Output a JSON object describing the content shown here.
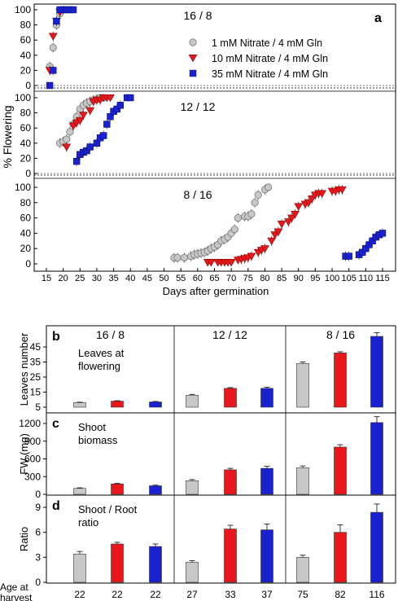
{
  "colors": {
    "gray": "#c8c8c8",
    "red": "#e8171b",
    "blue": "#1a21cf",
    "err": "#444444"
  },
  "top": {
    "panel_letter": "a",
    "ylabel": "% Flowering",
    "xlabel": "Days after germination",
    "legend": [
      {
        "label": "1 mM Nitrate / 4 mM Gln",
        "marker": "circle",
        "color": "#c8c8c8"
      },
      {
        "label": "10 mM Nitrate / 4 mM Gln",
        "marker": "triangle-down",
        "color": "#e8171b"
      },
      {
        "label": "35 mM Nitrate / 4 mM Gln",
        "marker": "square",
        "color": "#1a21cf"
      }
    ]
  },
  "bottom": {
    "age_label": "Age at\nharvest",
    "ages": [
      "22",
      "22",
      "22",
      "27",
      "33",
      "37",
      "75",
      "82",
      "116"
    ]
  },
  "chart_data": [
    {
      "type": "scatter",
      "panel": "a",
      "title": "16 / 8",
      "ylabel": "% Flowering",
      "xlim": [
        15,
        116
      ],
      "ylim": [
        0,
        105
      ],
      "yticks": [
        0,
        20,
        40,
        60,
        80,
        100
      ],
      "series": [
        {
          "name": "1 mM Nitrate / 4 mM Gln",
          "marker": "circle",
          "color": "#c8c8c8",
          "x": [
            16,
            17,
            18,
            19,
            20
          ],
          "y": [
            25,
            50,
            80,
            95,
            100
          ]
        },
        {
          "name": "10 mM Nitrate / 4 mM Gln",
          "marker": "triangle-down",
          "color": "#e8171b",
          "x": [
            16,
            17,
            18,
            19
          ],
          "y": [
            20,
            65,
            85,
            97
          ]
        },
        {
          "name": "35 mM Nitrate / 4 mM Gln",
          "marker": "square",
          "color": "#1a21cf",
          "x": [
            16,
            17,
            18,
            19,
            20,
            21,
            22,
            23
          ],
          "y": [
            0,
            20,
            85,
            100,
            100,
            100,
            100,
            100
          ]
        }
      ]
    },
    {
      "type": "scatter",
      "panel": "a",
      "title": "12 / 12",
      "ylabel": "% Flowering",
      "xlim": [
        15,
        116
      ],
      "ylim": [
        0,
        105
      ],
      "yticks": [
        0,
        20,
        40,
        60,
        80,
        100
      ],
      "series": [
        {
          "name": "1 mM Nitrate / 4 mM Gln",
          "marker": "circle",
          "color": "#c8c8c8",
          "x": [
            19,
            20,
            21,
            22,
            23,
            24,
            25,
            26,
            27,
            28,
            29,
            30,
            31,
            32
          ],
          "y": [
            40,
            42,
            45,
            55,
            65,
            75,
            85,
            90,
            93,
            95,
            97,
            98,
            100,
            100
          ]
        },
        {
          "name": "10 mM Nitrate / 4 mM Gln",
          "marker": "triangle-down",
          "color": "#e8171b",
          "x": [
            21,
            23,
            24,
            25,
            26,
            28,
            29,
            30,
            31,
            32,
            33,
            34
          ],
          "y": [
            35,
            63,
            67,
            70,
            77,
            83,
            95,
            97,
            97,
            100,
            100,
            100
          ]
        },
        {
          "name": "35 mM Nitrate / 4 mM Gln",
          "marker": "square",
          "color": "#1a21cf",
          "x": [
            24,
            25,
            26,
            27,
            28,
            30,
            31,
            32,
            33,
            34,
            35,
            36,
            37,
            39,
            40
          ],
          "y": [
            16,
            25,
            28,
            30,
            35,
            40,
            47,
            50,
            65,
            75,
            82,
            85,
            90,
            100,
            100
          ]
        }
      ]
    },
    {
      "type": "scatter",
      "panel": "a",
      "title": "8 / 16",
      "xlabel": "Days after germination",
      "ylabel": "% Flowering",
      "xlim": [
        15,
        116
      ],
      "ylim": [
        0,
        105
      ],
      "xticks": [
        15,
        20,
        25,
        30,
        35,
        40,
        45,
        50,
        55,
        60,
        65,
        70,
        75,
        80,
        85,
        90,
        95,
        100,
        105,
        110,
        115
      ],
      "yticks": [
        0,
        20,
        40,
        60,
        80,
        100
      ],
      "series": [
        {
          "name": "1 mM Nitrate / 4 mM Gln",
          "marker": "circle",
          "color": "#c8c8c8",
          "x": [
            53,
            54,
            56,
            58,
            59,
            60,
            61,
            62,
            63,
            64,
            65,
            66,
            67,
            68,
            69,
            70,
            71,
            72,
            74,
            75,
            76,
            77,
            78,
            80,
            81
          ],
          "y": [
            8,
            8,
            8,
            10,
            12,
            13,
            14,
            15,
            17,
            20,
            22,
            25,
            30,
            32,
            35,
            40,
            45,
            60,
            62,
            62,
            65,
            80,
            90,
            97,
            100
          ]
        },
        {
          "name": "10 mM Nitrate / 4 mM Gln",
          "marker": "triangle-down",
          "color": "#e8171b",
          "x": [
            63,
            64,
            66,
            67,
            68,
            69,
            70,
            72,
            73,
            74,
            75,
            76,
            78,
            79,
            80,
            82,
            83,
            84,
            85,
            87,
            88,
            89,
            90,
            92,
            93,
            94,
            95,
            96,
            97,
            100,
            101,
            102,
            103
          ],
          "y": [
            2,
            2,
            2,
            2,
            2,
            2,
            2,
            5,
            6,
            7,
            8,
            10,
            15,
            18,
            20,
            30,
            38,
            42,
            52,
            55,
            60,
            65,
            75,
            78,
            80,
            85,
            90,
            92,
            92,
            95,
            95,
            97,
            97
          ]
        },
        {
          "name": "35 mM Nitrate / 4 mM Gln",
          "marker": "square",
          "color": "#1a21cf",
          "x": [
            104,
            105,
            108,
            109,
            110,
            111,
            112,
            113,
            114,
            115
          ],
          "y": [
            10,
            10,
            12,
            15,
            20,
            25,
            30,
            35,
            38,
            40
          ]
        }
      ]
    },
    {
      "type": "bar",
      "panel": "b",
      "annotation": "Leaves at flowering",
      "ylabel": "Leaves number",
      "ylim": [
        0,
        55
      ],
      "yticks": [
        5,
        15,
        25,
        35,
        45
      ],
      "groups": [
        "16 / 8",
        "12 / 12",
        "8 / 16"
      ],
      "series": [
        {
          "name": "1 mM Nitrate / 4 mM Gln",
          "color": "#c8c8c8",
          "values": [
            8,
            13,
            34
          ],
          "errors": [
            0.3,
            0.5,
            1.0
          ]
        },
        {
          "name": "10 mM Nitrate / 4 mM Gln",
          "color": "#e8171b",
          "values": [
            9,
            17.5,
            41
          ],
          "errors": [
            0.3,
            0.5,
            0.8
          ]
        },
        {
          "name": "35 mM Nitrate / 4 mM Gln",
          "color": "#1a21cf",
          "values": [
            8.5,
            17.5,
            52
          ],
          "errors": [
            0.3,
            0.8,
            2.5
          ]
        }
      ]
    },
    {
      "type": "bar",
      "panel": "c",
      "annotation": "Shoot biomass",
      "ylabel": "FW (mg)",
      "ylim": [
        0,
        1350
      ],
      "yticks": [
        0,
        300,
        600,
        900,
        1200
      ],
      "groups": [
        "16 / 8",
        "12 / 12",
        "8 / 16"
      ],
      "series": [
        {
          "name": "1 mM Nitrate / 4 mM Gln",
          "color": "#c8c8c8",
          "values": [
            100,
            230,
            450
          ],
          "errors": [
            10,
            20,
            30
          ]
        },
        {
          "name": "10 mM Nitrate / 4 mM Gln",
          "color": "#e8171b",
          "values": [
            175,
            415,
            800
          ],
          "errors": [
            10,
            25,
            40
          ]
        },
        {
          "name": "35 mM Nitrate / 4 mM Gln",
          "color": "#1a21cf",
          "values": [
            145,
            440,
            1215
          ],
          "errors": [
            10,
            35,
            100
          ]
        }
      ]
    },
    {
      "type": "bar",
      "panel": "d",
      "annotation": "Shoot / Root ratio",
      "ylabel": "Ratio",
      "ylim": [
        0,
        10
      ],
      "yticks": [
        0,
        3,
        6,
        9
      ],
      "groups": [
        "16 / 8",
        "12 / 12",
        "8 / 16"
      ],
      "series": [
        {
          "name": "1 mM Nitrate / 4 mM Gln",
          "color": "#c8c8c8",
          "values": [
            3.4,
            2.4,
            3.0
          ],
          "errors": [
            0.3,
            0.2,
            0.25
          ]
        },
        {
          "name": "10 mM Nitrate / 4 mM Gln",
          "color": "#e8171b",
          "values": [
            4.6,
            6.4,
            6.0
          ],
          "errors": [
            0.2,
            0.45,
            0.9
          ]
        },
        {
          "name": "35 mM Nitrate / 4 mM Gln",
          "color": "#1a21cf",
          "values": [
            4.3,
            6.3,
            8.4
          ],
          "errors": [
            0.3,
            0.7,
            1.0
          ]
        }
      ]
    }
  ]
}
